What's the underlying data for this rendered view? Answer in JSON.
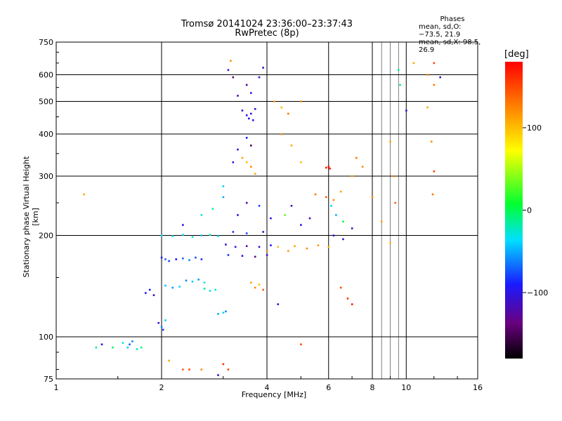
{
  "header": {
    "title_line1": "Tromsø 20141024 23:36:00–23:37:43",
    "title_line2": "RwPretec (8p)"
  },
  "stats": {
    "heading": "Phases",
    "line_o": "mean, sd,O: −73.5, 21.9",
    "line_x": "mean, sd,X:  98.5, 26.9"
  },
  "colorbar": {
    "label": "[deg]",
    "ticks": [
      "100",
      "0",
      "−100"
    ],
    "tick_values": [
      100,
      0,
      -100
    ],
    "range": [
      -180,
      180
    ],
    "colormap": "rainbow (black → purple → blue → cyan → green → yellow → orange → red)"
  },
  "chart_data": {
    "type": "scatter",
    "title": "Tromsø 20141024 23:36:00–23:37:43",
    "subtitle": "RwPretec (8p)",
    "xlabel": "Frequency [MHz]",
    "ylabel": "Stationary phase Virtual Height [km]",
    "xscale": "log",
    "yscale": "log",
    "xlim": [
      1,
      16
    ],
    "ylim": [
      75,
      750
    ],
    "xticks": [
      1,
      2,
      4,
      6,
      8,
      10,
      16
    ],
    "yticks": [
      75,
      100,
      200,
      300,
      400,
      500,
      600,
      750
    ],
    "grid": true,
    "color_variable": "phase [deg]",
    "points": [
      [
        1.2,
        265,
        110
      ],
      [
        1.3,
        93,
        -20
      ],
      [
        1.35,
        95,
        -100
      ],
      [
        1.45,
        93,
        -5
      ],
      [
        1.55,
        96,
        -30
      ],
      [
        1.6,
        93,
        -40
      ],
      [
        1.62,
        95,
        -70
      ],
      [
        1.65,
        97,
        -60
      ],
      [
        1.7,
        92,
        -20
      ],
      [
        1.75,
        93,
        -10
      ],
      [
        1.8,
        135,
        -95
      ],
      [
        1.85,
        138,
        -90
      ],
      [
        1.9,
        133,
        -110
      ],
      [
        1.96,
        110,
        -100
      ],
      [
        2.0,
        107,
        -60
      ],
      [
        2.02,
        105,
        -80
      ],
      [
        2.05,
        112,
        -40
      ],
      [
        2.0,
        172,
        -95
      ],
      [
        2.05,
        170,
        -70
      ],
      [
        2.1,
        168,
        -80
      ],
      [
        2.2,
        170,
        -90
      ],
      [
        2.3,
        171,
        -70
      ],
      [
        2.4,
        169,
        -60
      ],
      [
        2.5,
        172,
        -75
      ],
      [
        2.6,
        170,
        -85
      ],
      [
        2.0,
        200,
        -35
      ],
      [
        2.15,
        199,
        -30
      ],
      [
        2.3,
        201,
        -40
      ],
      [
        2.45,
        198,
        -25
      ],
      [
        2.6,
        200,
        -45
      ],
      [
        2.75,
        201,
        -20
      ],
      [
        2.9,
        199,
        -35
      ],
      [
        2.05,
        142,
        -45
      ],
      [
        2.15,
        140,
        -55
      ],
      [
        2.25,
        141,
        -40
      ],
      [
        2.35,
        147,
        -60
      ],
      [
        2.45,
        146,
        -40
      ],
      [
        2.55,
        148,
        -55
      ],
      [
        2.65,
        145,
        -30
      ],
      [
        2.65,
        139,
        -20
      ],
      [
        2.75,
        137,
        -30
      ],
      [
        2.85,
        138,
        -25
      ],
      [
        2.9,
        117,
        -50
      ],
      [
        3.0,
        118,
        -40
      ],
      [
        3.05,
        119,
        -60
      ],
      [
        2.3,
        215,
        -100
      ],
      [
        2.6,
        230,
        -30
      ],
      [
        2.8,
        240,
        -20
      ],
      [
        3.0,
        260,
        -50
      ],
      [
        3.0,
        280,
        -40
      ],
      [
        3.05,
        188,
        -110
      ],
      [
        3.25,
        185,
        -105
      ],
      [
        3.5,
        186,
        -120
      ],
      [
        3.8,
        185,
        -110
      ],
      [
        4.1,
        187,
        -95
      ],
      [
        3.1,
        175,
        -85
      ],
      [
        3.4,
        174,
        -95
      ],
      [
        3.7,
        173,
        -130
      ],
      [
        4.0,
        175,
        -115
      ],
      [
        3.2,
        205,
        -85
      ],
      [
        3.5,
        203,
        -75
      ],
      [
        3.9,
        205,
        -110
      ],
      [
        3.3,
        230,
        -100
      ],
      [
        3.5,
        250,
        -120
      ],
      [
        3.8,
        245,
        -80
      ],
      [
        4.1,
        225,
        -100
      ],
      [
        3.2,
        330,
        -100
      ],
      [
        3.3,
        360,
        -110
      ],
      [
        3.5,
        390,
        -90
      ],
      [
        3.6,
        370,
        -150
      ],
      [
        3.4,
        470,
        -110
      ],
      [
        3.5,
        455,
        -100
      ],
      [
        3.55,
        445,
        -100
      ],
      [
        3.6,
        460,
        -110
      ],
      [
        3.65,
        440,
        -95
      ],
      [
        3.7,
        475,
        -110
      ],
      [
        3.3,
        520,
        -120
      ],
      [
        3.5,
        560,
        -130
      ],
      [
        3.6,
        530,
        -100
      ],
      [
        3.8,
        590,
        -110
      ],
      [
        3.9,
        630,
        -110
      ],
      [
        3.1,
        620,
        -95
      ],
      [
        3.2,
        590,
        -140
      ],
      [
        3.15,
        660,
        120
      ],
      [
        3.4,
        340,
        110
      ],
      [
        3.5,
        330,
        100
      ],
      [
        3.6,
        320,
        120
      ],
      [
        3.7,
        305,
        110
      ],
      [
        3.6,
        145,
        110
      ],
      [
        3.7,
        140,
        120
      ],
      [
        3.8,
        143,
        100
      ],
      [
        3.9,
        138,
        140
      ],
      [
        4.0,
        180,
        120
      ],
      [
        4.3,
        185,
        100
      ],
      [
        4.6,
        180,
        115
      ],
      [
        4.8,
        186,
        110
      ],
      [
        5.2,
        183,
        120
      ],
      [
        5.6,
        187,
        115
      ],
      [
        6.0,
        185,
        105
      ],
      [
        4.2,
        500,
        110
      ],
      [
        4.4,
        480,
        100
      ],
      [
        4.6,
        460,
        130
      ],
      [
        5.0,
        500,
        120
      ],
      [
        4.4,
        400,
        120
      ],
      [
        4.7,
        370,
        110
      ],
      [
        5.0,
        330,
        100
      ],
      [
        4.5,
        230,
        30
      ],
      [
        4.7,
        245,
        -110
      ],
      [
        5.0,
        215,
        -100
      ],
      [
        5.3,
        225,
        -120
      ],
      [
        5.5,
        265,
        130
      ],
      [
        5.9,
        260,
        140
      ],
      [
        6.2,
        255,
        120
      ],
      [
        6.5,
        270,
        110
      ],
      [
        5.9,
        318,
        170
      ],
      [
        6.0,
        320,
        175
      ],
      [
        6.05,
        316,
        165
      ],
      [
        6.1,
        245,
        -40
      ],
      [
        6.3,
        230,
        -50
      ],
      [
        6.6,
        220,
        10
      ],
      [
        6.2,
        200,
        -100
      ],
      [
        6.6,
        195,
        -110
      ],
      [
        7.0,
        210,
        -120
      ],
      [
        6.5,
        140,
        150
      ],
      [
        6.8,
        130,
        160
      ],
      [
        7.0,
        125,
        170
      ],
      [
        7.2,
        340,
        130
      ],
      [
        7.5,
        320,
        120
      ],
      [
        7.0,
        300,
        110
      ],
      [
        8.0,
        260,
        120
      ],
      [
        8.5,
        220,
        110
      ],
      [
        9.0,
        190,
        100
      ],
      [
        9.5,
        620,
        -10
      ],
      [
        9.6,
        560,
        -5
      ],
      [
        10.0,
        470,
        -100
      ],
      [
        10.5,
        650,
        110
      ],
      [
        9.0,
        380,
        110
      ],
      [
        9.2,
        300,
        130
      ],
      [
        9.3,
        250,
        140
      ],
      [
        11.5,
        600,
        120
      ],
      [
        12.0,
        560,
        130
      ],
      [
        11.5,
        480,
        110
      ],
      [
        11.8,
        380,
        120
      ],
      [
        12.0,
        310,
        150
      ],
      [
        11.9,
        265,
        130
      ],
      [
        12.5,
        590,
        -110
      ],
      [
        12.0,
        650,
        150
      ],
      [
        2.1,
        85,
        110
      ],
      [
        2.3,
        80,
        140
      ],
      [
        2.4,
        80,
        150
      ],
      [
        2.6,
        80,
        120
      ],
      [
        2.9,
        77,
        -110
      ],
      [
        3.0,
        83,
        160
      ],
      [
        3.1,
        80,
        150
      ],
      [
        5.0,
        95,
        150
      ],
      [
        4.3,
        125,
        -115
      ]
    ]
  }
}
